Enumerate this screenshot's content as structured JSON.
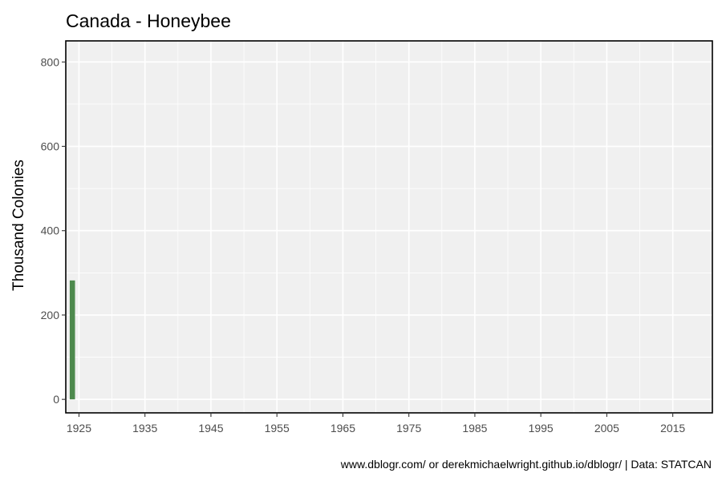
{
  "chart_data": {
    "type": "bar",
    "title": "Canada - Honeybee",
    "xlabel": "",
    "ylabel": "Thousand Colonies",
    "caption": "www.dblogr.com/ or derekmichaelwright.github.io/dblogr/ | Data: STATCAN",
    "xlim": [
      1923,
      2021
    ],
    "ylim": [
      -32,
      850
    ],
    "x_ticks": [
      1925,
      1935,
      1945,
      1955,
      1965,
      1975,
      1985,
      1995,
      2005,
      2015
    ],
    "y_ticks": [
      0,
      200,
      400,
      600,
      800
    ],
    "grid": true,
    "bar_color": "#4e8a4e",
    "panel_color": "#f0f0f0",
    "x": [
      1924
    ],
    "values": [
      282
    ]
  }
}
